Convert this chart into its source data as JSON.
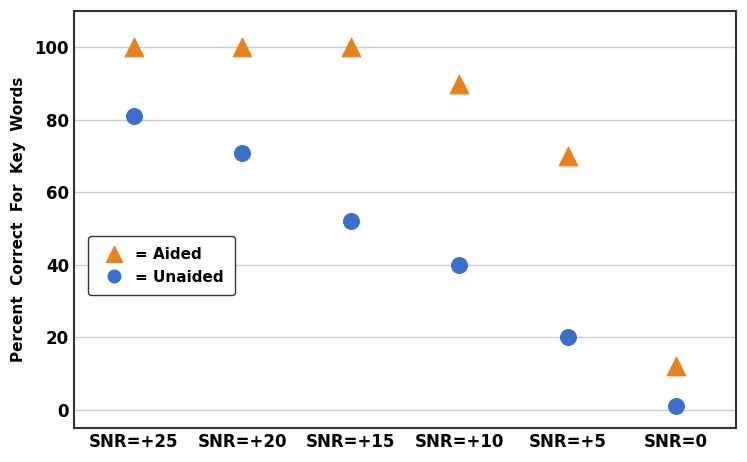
{
  "xlabel": "",
  "ylabel": "Percent  Correct  For  Key  Words",
  "categories": [
    "SNR=+25",
    "SNR=+20",
    "SNR=+15",
    "SNR=+10",
    "SNR=+5",
    "SNR=0"
  ],
  "aided_values": [
    100,
    100,
    100,
    90,
    70,
    12
  ],
  "unaided_values": [
    81,
    71,
    52,
    40,
    20,
    1
  ],
  "aided_color": "#E8821E",
  "unaided_color": "#3B6FC9",
  "ylim": [
    -5,
    110
  ],
  "yticks": [
    0,
    20,
    40,
    60,
    80,
    100
  ],
  "marker_size_triangle": 180,
  "marker_size_circle": 130,
  "background_color": "#ffffff",
  "legend_aided_label": "= Aided",
  "legend_unaided_label": "= Unaided",
  "grid_color": "#cccccc",
  "axis_bg_color": "#ffffff",
  "tick_fontsize": 12,
  "ylabel_fontsize": 11,
  "legend_fontsize": 11
}
